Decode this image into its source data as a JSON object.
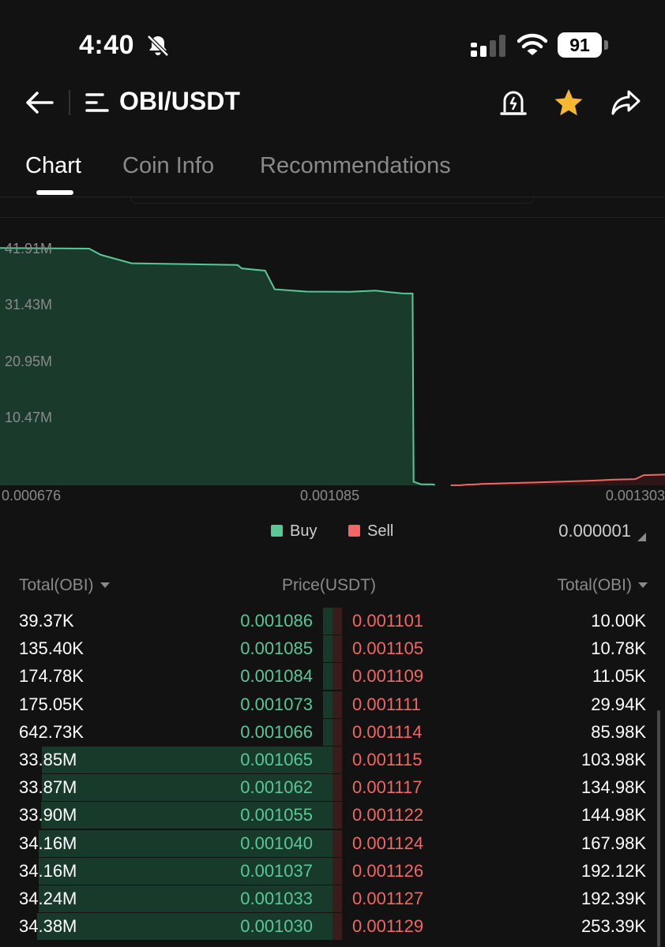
{
  "status_bar": {
    "time": "4:40",
    "battery": "91"
  },
  "header": {
    "title": "OBI/USDT"
  },
  "tabs": [
    {
      "label": "Chart",
      "active": true
    },
    {
      "label": "Coin Info",
      "active": false
    },
    {
      "label": "Recommendations",
      "active": false
    }
  ],
  "chart_data": {
    "type": "area",
    "y_tick_labels": [
      "41.91M",
      "31.43M",
      "20.95M",
      "10.47M"
    ],
    "y_ticks": [
      41910000,
      31430000,
      20950000,
      10470000
    ],
    "x_tick_labels": [
      "0.000676",
      "0.001085",
      "0.001303"
    ],
    "xlim": [
      0.000676,
      0.001303
    ],
    "ylim": [
      0,
      45000000
    ],
    "series": [
      {
        "name": "Buy",
        "color": "#58c896",
        "fill": "#1a3a2c",
        "points": [
          [
            0.000676,
            41900000
          ],
          [
            0.00076,
            41800000
          ],
          [
            0.000771,
            40700000
          ],
          [
            0.0008,
            39200000
          ],
          [
            0.0009,
            38900000
          ],
          [
            0.000904,
            38300000
          ],
          [
            0.000926,
            37900000
          ],
          [
            0.000935,
            34600000
          ],
          [
            0.000965,
            34200000
          ],
          [
            0.001006,
            34160000
          ],
          [
            0.00103,
            34380000
          ],
          [
            0.00104,
            34160000
          ],
          [
            0.001055,
            33900000
          ],
          [
            0.001062,
            33870000
          ],
          [
            0.001065,
            33850000
          ],
          [
            0.001066,
            642730
          ],
          [
            0.001073,
            175050
          ],
          [
            0.001084,
            174780
          ],
          [
            0.001085,
            135400
          ],
          [
            0.001086,
            39370
          ]
        ]
      },
      {
        "name": "Sell",
        "color": "#f26666",
        "fill": "#2e1616",
        "points": [
          [
            0.001101,
            10000
          ],
          [
            0.001105,
            10780
          ],
          [
            0.001109,
            11050
          ],
          [
            0.001111,
            29940
          ],
          [
            0.001114,
            85980
          ],
          [
            0.001115,
            103980
          ],
          [
            0.001117,
            134980
          ],
          [
            0.001122,
            144980
          ],
          [
            0.001124,
            167980
          ],
          [
            0.001126,
            192120
          ],
          [
            0.001127,
            192390
          ],
          [
            0.001129,
            253390
          ],
          [
            0.00118,
            500000
          ],
          [
            0.00123,
            800000
          ],
          [
            0.001255,
            1000000
          ],
          [
            0.001275,
            1100000
          ],
          [
            0.001283,
            1800000
          ],
          [
            0.001303,
            1900000
          ]
        ]
      }
    ]
  },
  "legend": {
    "buy": "Buy",
    "sell": "Sell",
    "buy_color": "#58c896",
    "sell_color": "#f26666"
  },
  "precision": "0.000001",
  "order_book": {
    "headers": {
      "left": "Total(OBI)",
      "mid": "Price(USDT)",
      "right": "Total(OBI)"
    },
    "rows": [
      {
        "buy_total": "39.37K",
        "buy_price": "0.001086",
        "sell_price": "0.001101",
        "sell_total": "10.00K",
        "buy_depth": 0.0011,
        "sell_depth": 0.0
      },
      {
        "buy_total": "135.40K",
        "buy_price": "0.001085",
        "sell_price": "0.001105",
        "sell_total": "10.78K",
        "buy_depth": 0.004,
        "sell_depth": 0.0
      },
      {
        "buy_total": "174.78K",
        "buy_price": "0.001084",
        "sell_price": "0.001109",
        "sell_total": "11.05K",
        "buy_depth": 0.005,
        "sell_depth": 0.0
      },
      {
        "buy_total": "175.05K",
        "buy_price": "0.001073",
        "sell_price": "0.001111",
        "sell_total": "29.94K",
        "buy_depth": 0.005,
        "sell_depth": 0.0
      },
      {
        "buy_total": "642.73K",
        "buy_price": "0.001066",
        "sell_price": "0.001114",
        "sell_total": "85.98K",
        "buy_depth": 0.019,
        "sell_depth": 0.0
      },
      {
        "buy_total": "33.85M",
        "buy_price": "0.001065",
        "sell_price": "0.001115",
        "sell_total": "103.98K",
        "buy_depth": 0.985,
        "sell_depth": 0.003
      },
      {
        "buy_total": "33.87M",
        "buy_price": "0.001062",
        "sell_price": "0.001117",
        "sell_total": "134.98K",
        "buy_depth": 0.985,
        "sell_depth": 0.004
      },
      {
        "buy_total": "33.90M",
        "buy_price": "0.001055",
        "sell_price": "0.001122",
        "sell_total": "144.98K",
        "buy_depth": 0.986,
        "sell_depth": 0.004
      },
      {
        "buy_total": "34.16M",
        "buy_price": "0.001040",
        "sell_price": "0.001124",
        "sell_total": "167.98K",
        "buy_depth": 0.994,
        "sell_depth": 0.005
      },
      {
        "buy_total": "34.16M",
        "buy_price": "0.001037",
        "sell_price": "0.001126",
        "sell_total": "192.12K",
        "buy_depth": 0.994,
        "sell_depth": 0.006
      },
      {
        "buy_total": "34.24M",
        "buy_price": "0.001033",
        "sell_price": "0.001127",
        "sell_total": "192.39K",
        "buy_depth": 0.996,
        "sell_depth": 0.006
      },
      {
        "buy_total": "34.38M",
        "buy_price": "0.001030",
        "sell_price": "0.001129",
        "sell_total": "253.39K",
        "buy_depth": 1.0,
        "sell_depth": 0.007
      }
    ]
  }
}
